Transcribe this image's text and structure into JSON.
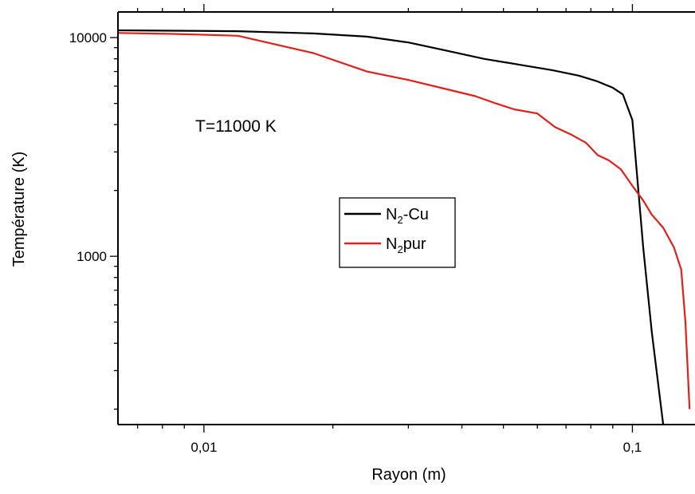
{
  "chart_data": {
    "type": "line",
    "title": "",
    "xlabel": "Rayon (m)",
    "ylabel": "Température (K)",
    "xscale": "log",
    "yscale": "log",
    "xlim": [
      0.0063,
      0.14
    ],
    "ylim": [
      170,
      13100
    ],
    "x_tick_labels": [
      {
        "value": 0.01,
        "label": "0,01"
      },
      {
        "value": 0.1,
        "label": "0,1"
      }
    ],
    "y_tick_labels": [
      {
        "value": 1000,
        "label": "1000"
      },
      {
        "value": 10000,
        "label": "10000"
      }
    ],
    "annotation": "T=11000 K",
    "legend": {
      "placement": "center-right",
      "entries": [
        {
          "main": "N",
          "sub": "2",
          "rest": "-Cu"
        },
        {
          "main": "N",
          "sub": "2",
          "rest": "pur"
        }
      ]
    },
    "series": [
      {
        "name": "N2-Cu",
        "color": "#000000",
        "x": [
          0.0063,
          0.0085,
          0.012,
          0.018,
          0.024,
          0.03,
          0.037,
          0.045,
          0.055,
          0.065,
          0.075,
          0.083,
          0.09,
          0.095,
          0.1,
          0.106,
          0.111,
          0.118
        ],
        "y": [
          10800,
          10750,
          10700,
          10450,
          10100,
          9500,
          8700,
          8000,
          7500,
          7100,
          6700,
          6300,
          5900,
          5500,
          4200,
          1100,
          450,
          170
        ]
      },
      {
        "name": "N2pur",
        "color": "#e0201b",
        "x": [
          0.0063,
          0.0085,
          0.012,
          0.018,
          0.024,
          0.03,
          0.037,
          0.043,
          0.048,
          0.053,
          0.06,
          0.066,
          0.072,
          0.078,
          0.083,
          0.088,
          0.094,
          0.1,
          0.106,
          0.111,
          0.118,
          0.125,
          0.13,
          0.133,
          0.136
        ],
        "y": [
          10500,
          10400,
          10200,
          8500,
          7000,
          6400,
          5800,
          5400,
          5000,
          4700,
          4500,
          3900,
          3600,
          3300,
          2900,
          2750,
          2500,
          2100,
          1800,
          1550,
          1350,
          1100,
          870,
          500,
          200
        ]
      }
    ]
  }
}
